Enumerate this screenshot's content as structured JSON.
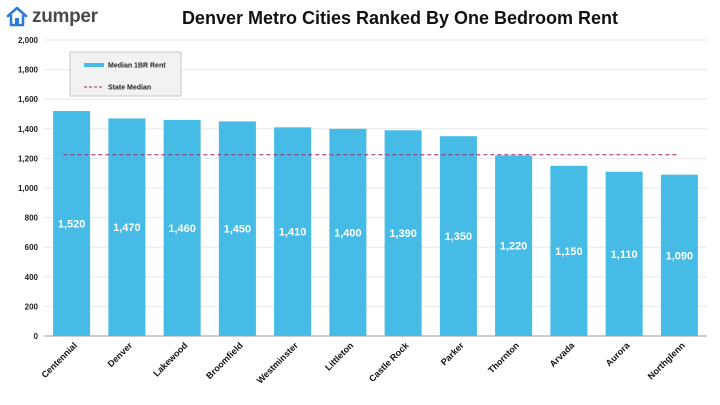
{
  "brand": {
    "name": "zumper",
    "icon": "house-icon",
    "color": "#2e7bd6"
  },
  "colors": {
    "bar": "#45bbe5",
    "reference_line": "#a0246e",
    "grid": "#e3e3e3"
  },
  "chart_data": {
    "type": "bar",
    "title": "Denver Metro Cities Ranked By One Bedroom Rent",
    "xlabel": "",
    "ylabel": "",
    "categories": [
      "Centennial",
      "Denver",
      "Lakewood",
      "Broomfield",
      "Westminster",
      "Littleton",
      "Castle Rock",
      "Parker",
      "Thornton",
      "Arvada",
      "Aurora",
      "Northglenn"
    ],
    "series": [
      {
        "name": "Median 1BR Rent",
        "values": [
          1520,
          1470,
          1460,
          1450,
          1410,
          1400,
          1390,
          1350,
          1220,
          1150,
          1110,
          1090
        ]
      }
    ],
    "data_labels": [
      "1,520",
      "1,470",
      "1,460",
      "1,450",
      "1,410",
      "1,400",
      "1,390",
      "1,350",
      "1,220",
      "1,150",
      "1,110",
      "1,090"
    ],
    "reference_line": {
      "name": "State Median",
      "value": 1225
    },
    "ylim": [
      0,
      2000
    ],
    "yticks": [
      0,
      200,
      400,
      600,
      800,
      1000,
      1200,
      1400,
      1600,
      1800,
      2000
    ],
    "ytick_labels": [
      "0",
      "200",
      "400",
      "600",
      "800",
      "1,000",
      "1,200",
      "1,400",
      "1,600",
      "1,800",
      "2,000"
    ],
    "grid": true,
    "legend": "top-left"
  }
}
